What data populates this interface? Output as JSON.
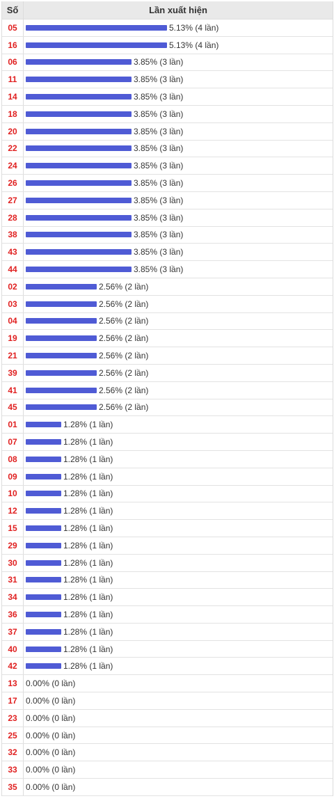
{
  "header": {
    "col_number": "Số",
    "col_freq": "Lần xuất hiện"
  },
  "colors": {
    "bar": "#4f5bd5",
    "number": "#e02020"
  },
  "chart_data": {
    "type": "bar",
    "orientation": "horizontal",
    "max_count": 4,
    "rows": [
      {
        "number": "05",
        "percent": 5.13,
        "count": 4,
        "label": "5.13% (4 lần)"
      },
      {
        "number": "16",
        "percent": 5.13,
        "count": 4,
        "label": "5.13% (4 lần)"
      },
      {
        "number": "06",
        "percent": 3.85,
        "count": 3,
        "label": "3.85% (3 lần)"
      },
      {
        "number": "11",
        "percent": 3.85,
        "count": 3,
        "label": "3.85% (3 lần)"
      },
      {
        "number": "14",
        "percent": 3.85,
        "count": 3,
        "label": "3.85% (3 lần)"
      },
      {
        "number": "18",
        "percent": 3.85,
        "count": 3,
        "label": "3.85% (3 lần)"
      },
      {
        "number": "20",
        "percent": 3.85,
        "count": 3,
        "label": "3.85% (3 lần)"
      },
      {
        "number": "22",
        "percent": 3.85,
        "count": 3,
        "label": "3.85% (3 lần)"
      },
      {
        "number": "24",
        "percent": 3.85,
        "count": 3,
        "label": "3.85% (3 lần)"
      },
      {
        "number": "26",
        "percent": 3.85,
        "count": 3,
        "label": "3.85% (3 lần)"
      },
      {
        "number": "27",
        "percent": 3.85,
        "count": 3,
        "label": "3.85% (3 lần)"
      },
      {
        "number": "28",
        "percent": 3.85,
        "count": 3,
        "label": "3.85% (3 lần)"
      },
      {
        "number": "38",
        "percent": 3.85,
        "count": 3,
        "label": "3.85% (3 lần)"
      },
      {
        "number": "43",
        "percent": 3.85,
        "count": 3,
        "label": "3.85% (3 lần)"
      },
      {
        "number": "44",
        "percent": 3.85,
        "count": 3,
        "label": "3.85% (3 lần)"
      },
      {
        "number": "02",
        "percent": 2.56,
        "count": 2,
        "label": "2.56% (2 lần)"
      },
      {
        "number": "03",
        "percent": 2.56,
        "count": 2,
        "label": "2.56% (2 lần)"
      },
      {
        "number": "04",
        "percent": 2.56,
        "count": 2,
        "label": "2.56% (2 lần)"
      },
      {
        "number": "19",
        "percent": 2.56,
        "count": 2,
        "label": "2.56% (2 lần)"
      },
      {
        "number": "21",
        "percent": 2.56,
        "count": 2,
        "label": "2.56% (2 lần)"
      },
      {
        "number": "39",
        "percent": 2.56,
        "count": 2,
        "label": "2.56% (2 lần)"
      },
      {
        "number": "41",
        "percent": 2.56,
        "count": 2,
        "label": "2.56% (2 lần)"
      },
      {
        "number": "45",
        "percent": 2.56,
        "count": 2,
        "label": "2.56% (2 lần)"
      },
      {
        "number": "01",
        "percent": 1.28,
        "count": 1,
        "label": "1.28% (1 lần)"
      },
      {
        "number": "07",
        "percent": 1.28,
        "count": 1,
        "label": "1.28% (1 lần)"
      },
      {
        "number": "08",
        "percent": 1.28,
        "count": 1,
        "label": "1.28% (1 lần)"
      },
      {
        "number": "09",
        "percent": 1.28,
        "count": 1,
        "label": "1.28% (1 lần)"
      },
      {
        "number": "10",
        "percent": 1.28,
        "count": 1,
        "label": "1.28% (1 lần)"
      },
      {
        "number": "12",
        "percent": 1.28,
        "count": 1,
        "label": "1.28% (1 lần)"
      },
      {
        "number": "15",
        "percent": 1.28,
        "count": 1,
        "label": "1.28% (1 lần)"
      },
      {
        "number": "29",
        "percent": 1.28,
        "count": 1,
        "label": "1.28% (1 lần)"
      },
      {
        "number": "30",
        "percent": 1.28,
        "count": 1,
        "label": "1.28% (1 lần)"
      },
      {
        "number": "31",
        "percent": 1.28,
        "count": 1,
        "label": "1.28% (1 lần)"
      },
      {
        "number": "34",
        "percent": 1.28,
        "count": 1,
        "label": "1.28% (1 lần)"
      },
      {
        "number": "36",
        "percent": 1.28,
        "count": 1,
        "label": "1.28% (1 lần)"
      },
      {
        "number": "37",
        "percent": 1.28,
        "count": 1,
        "label": "1.28% (1 lần)"
      },
      {
        "number": "40",
        "percent": 1.28,
        "count": 1,
        "label": "1.28% (1 lần)"
      },
      {
        "number": "42",
        "percent": 1.28,
        "count": 1,
        "label": "1.28% (1 lần)"
      },
      {
        "number": "13",
        "percent": 0.0,
        "count": 0,
        "label": "0.00% (0 lần)"
      },
      {
        "number": "17",
        "percent": 0.0,
        "count": 0,
        "label": "0.00% (0 lần)"
      },
      {
        "number": "23",
        "percent": 0.0,
        "count": 0,
        "label": "0.00% (0 lần)"
      },
      {
        "number": "25",
        "percent": 0.0,
        "count": 0,
        "label": "0.00% (0 lần)"
      },
      {
        "number": "32",
        "percent": 0.0,
        "count": 0,
        "label": "0.00% (0 lần)"
      },
      {
        "number": "33",
        "percent": 0.0,
        "count": 0,
        "label": "0.00% (0 lần)"
      },
      {
        "number": "35",
        "percent": 0.0,
        "count": 0,
        "label": "0.00% (0 lần)"
      }
    ]
  }
}
